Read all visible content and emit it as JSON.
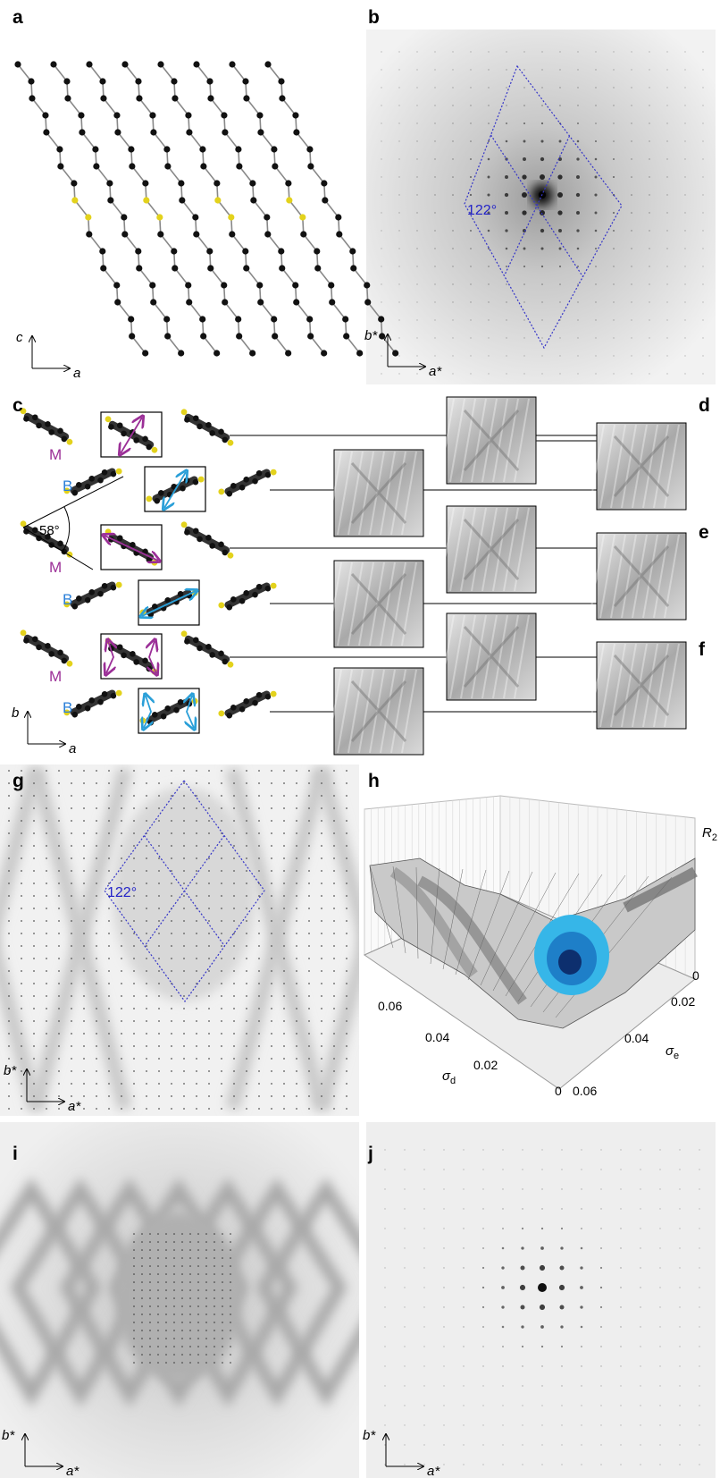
{
  "panels": {
    "a": {
      "label": "a",
      "axes": {
        "vertical": "c",
        "horizontal": "a"
      }
    },
    "b": {
      "label": "b",
      "angle": "122°",
      "axes": {
        "vertical": "b*",
        "horizontal": "a*"
      }
    },
    "c": {
      "label": "c",
      "angle": "58°",
      "molecule_labels": [
        "M",
        "B",
        "M",
        "B",
        "M",
        "B"
      ],
      "axes": {
        "vertical": "b",
        "horizontal": "a"
      }
    },
    "d": {
      "label": "d"
    },
    "e": {
      "label": "e"
    },
    "f": {
      "label": "f"
    },
    "g": {
      "label": "g",
      "angle": "122°",
      "axes": {
        "vertical": "b*",
        "horizontal": "a*"
      }
    },
    "h": {
      "label": "h",
      "z_axis": {
        "symbol": "R",
        "subscript": "2",
        "ticks": [
          "0"
        ]
      },
      "left_axis": {
        "symbol": "σ",
        "subscript": "d",
        "ticks": [
          "0.06",
          "0.04",
          "0.02",
          "0"
        ]
      },
      "right_axis": {
        "symbol": "σ",
        "subscript": "e",
        "ticks": [
          "0.02",
          "0.04",
          "0.06"
        ]
      }
    },
    "i": {
      "label": "i",
      "axes": {
        "vertical": "b*",
        "horizontal": "a*"
      }
    },
    "j": {
      "label": "j",
      "axes": {
        "vertical": "b*",
        "horizontal": "a*"
      }
    }
  }
}
